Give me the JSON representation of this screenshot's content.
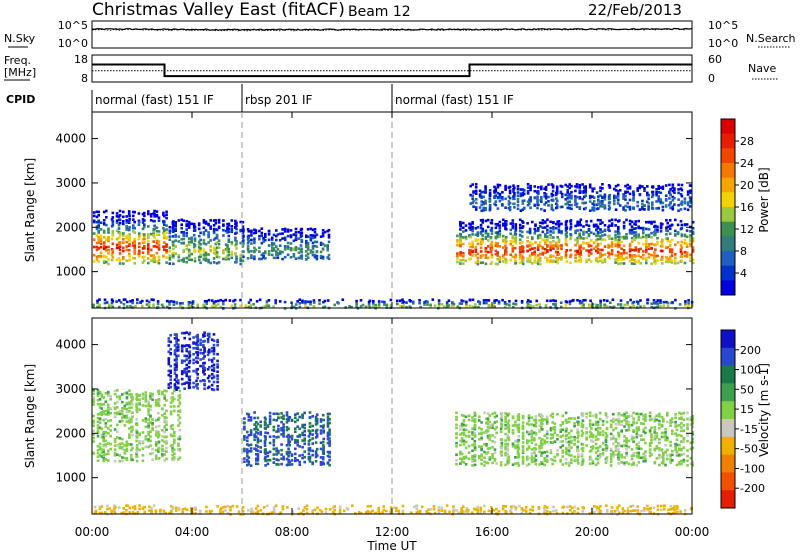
{
  "header": {
    "title": "Christmas Valley East (fitACF)",
    "beam": "Beam 12",
    "date": "22/Feb/2013"
  },
  "side_labels": {
    "nsky": "N.Sky",
    "nsearch": "N.Search",
    "freq_line1": "Freq.",
    "freq_line2": "[MHz]",
    "nave": "Nave",
    "cpid": "CPID"
  },
  "noise_axis": {
    "left_ticks": [
      "10^5",
      "10^0"
    ],
    "right_ticks": [
      "10^5",
      "10^0"
    ]
  },
  "freq_axis": {
    "left_ticks": [
      "18",
      "8"
    ],
    "right_ticks": [
      "60",
      "0"
    ]
  },
  "cpid_segments": [
    {
      "label": "normal (fast) 151 IF",
      "start_h": 0,
      "end_h": 6
    },
    {
      "label": "rbsp 201 IF",
      "start_h": 6,
      "end_h": 12
    },
    {
      "label": "normal (fast) 151 IF",
      "start_h": 12,
      "end_h": 24
    }
  ],
  "time_axis": {
    "label": "Time UT",
    "ticks": [
      "00:00",
      "04:00",
      "08:00",
      "12:00",
      "16:00",
      "20:00",
      "00:00"
    ],
    "range_h": [
      0,
      24
    ]
  },
  "range_axis": {
    "label": "Slant Range [km]",
    "ticks": [
      "1000",
      "2000",
      "3000",
      "4000"
    ],
    "range_km": [
      180,
      4600
    ]
  },
  "power_colorbar": {
    "label": "Power [dB]",
    "ticks": [
      "4",
      "8",
      "12",
      "16",
      "20",
      "24",
      "28"
    ],
    "colors": [
      "#0000dd",
      "#0033cc",
      "#1f5fbf",
      "#2f7d7d",
      "#3c9150",
      "#9cc83c",
      "#f0d20a",
      "#f5a500",
      "#f57800",
      "#f04600",
      "#e61e00",
      "#dc0000"
    ]
  },
  "velocity_colorbar": {
    "label": "Velocity [m s-1]",
    "ticks": [
      "200",
      "100",
      "50",
      "15",
      "-15",
      "-50",
      "-100",
      "-200"
    ],
    "colors": [
      "#1010c8",
      "#2848d0",
      "#1a7a4a",
      "#3ca050",
      "#80d048",
      "#c8c8c0",
      "#f0b000",
      "#f08000",
      "#f05000",
      "#e61e00"
    ]
  },
  "chart_data": [
    {
      "type": "line",
      "title": "Christmas Valley East (fitACF)",
      "panel": "noise",
      "x_unit": "hours UT",
      "series": [
        {
          "name": "N.Sky",
          "x": [
            0,
            1,
            3,
            6,
            9,
            12,
            15,
            18,
            21,
            24
          ],
          "values": [
            3000,
            3300,
            2800,
            2500,
            2600,
            2700,
            2800,
            3000,
            3200,
            3400
          ]
        },
        {
          "name": "N.Search",
          "x": [
            0,
            1,
            3,
            6,
            9,
            12,
            15,
            18,
            21,
            24
          ],
          "values": [
            2200,
            2400,
            2100,
            1900,
            2000,
            2100,
            2200,
            2400,
            2600,
            2800
          ]
        }
      ]
    },
    {
      "type": "line",
      "panel": "frequency",
      "x_unit": "hours UT",
      "series": [
        {
          "name": "Freq.",
          "x": [
            0,
            2.9,
            2.9,
            15.1,
            15.1,
            24
          ],
          "values": [
            14.5,
            14.5,
            10.2,
            10.2,
            14.5,
            14.5
          ]
        },
        {
          "name": "Nave",
          "x": [
            0,
            24
          ],
          "values": [
            25,
            25
          ]
        }
      ]
    },
    {
      "type": "heatmap",
      "panel": "power",
      "xlabel": "Time UT",
      "ylabel": "Slant Range [km]",
      "colorbar": "Power [dB]",
      "xlim": [
        0,
        24
      ],
      "ylim": [
        180,
        4600
      ],
      "backscatter_bands": [
        {
          "t_start": 0,
          "t_end": 3,
          "range_km": [
            1200,
            2400
          ],
          "peak_db": 28
        },
        {
          "t_start": 3,
          "t_end": 6,
          "range_km": [
            1200,
            2200
          ],
          "peak_db": 16
        },
        {
          "t_start": 6,
          "t_end": 9.5,
          "range_km": [
            1300,
            2000
          ],
          "peak_db": 12
        },
        {
          "t_start": 14.5,
          "t_end": 24,
          "range_km": [
            1200,
            2200
          ],
          "peak_db": 28
        },
        {
          "t_start": 15,
          "t_end": 24,
          "range_km": [
            2400,
            3000
          ],
          "peak_db": 8
        },
        {
          "t_start": 0,
          "t_end": 24,
          "range_km": [
            200,
            400
          ],
          "peak_db": 16
        }
      ]
    },
    {
      "type": "heatmap",
      "panel": "velocity",
      "xlabel": "Time UT",
      "ylabel": "Slant Range [km]",
      "colorbar": "Velocity [m s-1]",
      "xlim": [
        0,
        24
      ],
      "ylim": [
        180,
        4600
      ],
      "backscatter_bands": [
        {
          "t_start": 0,
          "t_end": 3.5,
          "range_km": [
            1400,
            3000
          ],
          "velocity": 0
        },
        {
          "t_start": 3,
          "t_end": 5,
          "range_km": [
            3000,
            4300
          ],
          "velocity": 150
        },
        {
          "t_start": 6,
          "t_end": 9.5,
          "range_km": [
            1300,
            2500
          ],
          "velocity": 80
        },
        {
          "t_start": 14.5,
          "t_end": 24,
          "range_km": [
            1300,
            2500
          ],
          "velocity": 0
        },
        {
          "t_start": 0,
          "t_end": 24,
          "range_km": [
            200,
            400
          ],
          "velocity": -40
        }
      ]
    }
  ]
}
